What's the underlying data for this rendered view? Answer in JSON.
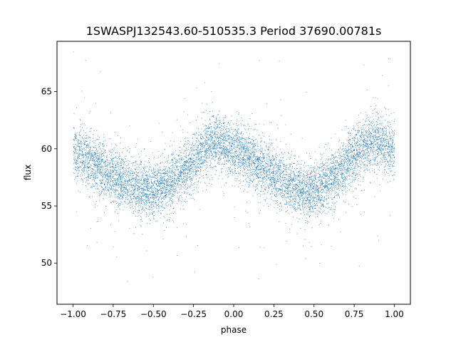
{
  "chart_data": {
    "type": "scatter",
    "title": "1SWASPJ132543.60-510535.3 Period 37690.00781s",
    "xlabel": "phase",
    "ylabel": "flux",
    "xlim": [
      -1.1,
      1.1
    ],
    "ylim": [
      46.4,
      69.4
    ],
    "grid": false,
    "legend": "none",
    "marker_color": "#1f77b4",
    "x_ticks": [
      {
        "value": -1.0,
        "label": "−1.00"
      },
      {
        "value": -0.75,
        "label": "−0.75"
      },
      {
        "value": -0.5,
        "label": "−0.50"
      },
      {
        "value": -0.25,
        "label": "−0.25"
      },
      {
        "value": 0.0,
        "label": "0.00"
      },
      {
        "value": 0.25,
        "label": "0.25"
      },
      {
        "value": 0.5,
        "label": "0.50"
      },
      {
        "value": 0.75,
        "label": "0.75"
      },
      {
        "value": 1.0,
        "label": "1.00"
      }
    ],
    "y_ticks": [
      {
        "value": 50,
        "label": "50"
      },
      {
        "value": 55,
        "label": "55"
      },
      {
        "value": 60,
        "label": "60"
      },
      {
        "value": 65,
        "label": "65"
      }
    ],
    "series": [
      {
        "x": [
          -1.0,
          -0.95,
          -0.9,
          -0.85,
          -0.8,
          -0.75,
          -0.7,
          -0.65,
          -0.6,
          -0.55,
          -0.5,
          -0.45,
          -0.4,
          -0.35,
          -0.3,
          -0.25,
          -0.2,
          -0.15,
          -0.1,
          -0.05,
          0.0,
          0.05,
          0.1,
          0.15,
          0.2,
          0.25,
          0.3,
          0.35,
          0.4,
          0.45,
          0.5,
          0.55,
          0.6,
          0.65,
          0.7,
          0.75,
          0.8,
          0.85,
          0.9,
          0.95,
          1.0
        ],
        "y": [
          59.8,
          59.5,
          59.0,
          58.5,
          58.0,
          57.6,
          57.2,
          56.9,
          56.6,
          56.4,
          56.4,
          56.6,
          57.0,
          57.6,
          58.3,
          59.0,
          59.8,
          60.5,
          60.6,
          60.3,
          59.9,
          59.6,
          59.2,
          58.7,
          58.2,
          57.7,
          57.2,
          56.8,
          56.5,
          56.3,
          56.4,
          56.7,
          57.1,
          57.8,
          58.6,
          59.4,
          60.2,
          60.6,
          60.6,
          60.2,
          59.9
        ],
        "scatter": 1.2,
        "outlier_range": [
          47.5,
          68.8
        ]
      }
    ]
  }
}
